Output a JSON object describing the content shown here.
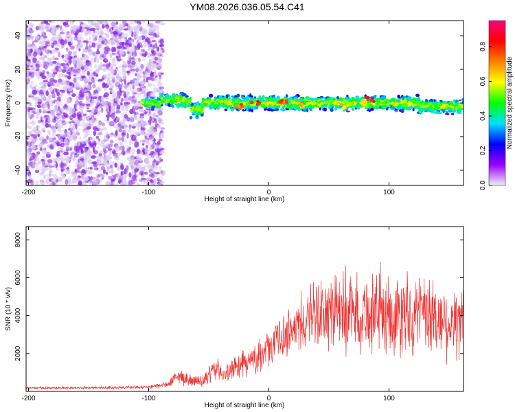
{
  "title": "YM08.2026.036.05.54.C41",
  "chart_data": [
    {
      "type": "heatmap",
      "xlabel": "Height of straight line (km)",
      "ylabel": "Frequency (Hz)",
      "xlim": [
        -202,
        162
      ],
      "ylim": [
        -49,
        49
      ],
      "xticks": [
        -200,
        -100,
        0,
        100
      ],
      "yticks": [
        -40,
        -20,
        0,
        20,
        40
      ],
      "colorbar": {
        "label": "Normalized spectral amplitude",
        "range": [
          0.0,
          0.95
        ],
        "ticks": [
          0.0,
          0.2,
          0.4,
          0.6,
          0.8
        ],
        "tick_labels": [
          "0.0",
          "0.2",
          "0.4",
          "0.6",
          "0.8"
        ],
        "colormap": [
          "#f4eef8",
          "#9a00ff",
          "#0000ff",
          "#00e0ff",
          "#00ff00",
          "#ffff00",
          "#ff8000",
          "#ff0000",
          "#ff0080"
        ]
      },
      "regions": [
        {
          "name": "noise",
          "x_range": [
            -202,
            -88
          ],
          "f_range": [
            -49,
            49
          ],
          "amplitude_range": [
            0.0,
            0.1
          ]
        },
        {
          "name": "signal band",
          "x_range": [
            -105,
            162
          ],
          "f_center": 0,
          "f_halfwidth": 5,
          "amplitude_range": [
            0.1,
            0.95
          ]
        }
      ],
      "peak_points": [
        {
          "x": -12,
          "f": 0,
          "amp": 0.9
        },
        {
          "x": -25,
          "f": -2,
          "amp": 0.8
        },
        {
          "x": 12,
          "f": 1,
          "amp": 0.85
        },
        {
          "x": 25,
          "f": -1,
          "amp": 0.75
        },
        {
          "x": 85,
          "f": 2,
          "amp": 0.9
        },
        {
          "x": 62,
          "f": -2,
          "amp": 0.7
        }
      ]
    },
    {
      "type": "line",
      "xlabel": "Height of straight line (km)",
      "ylabel": "SNR (10 * v/v)",
      "xlim": [
        -202,
        162
      ],
      "ylim": [
        0,
        8700
      ],
      "xticks": [
        -200,
        -100,
        0,
        100
      ],
      "yticks": [
        2000,
        4000,
        6000,
        8000
      ],
      "color": "#ee3333",
      "series_envelope": {
        "x": [
          -202,
          -150,
          -100,
          -85,
          -75,
          -65,
          -55,
          -45,
          -35,
          -25,
          -15,
          -5,
          5,
          15,
          25,
          35,
          50,
          70,
          90,
          110,
          130,
          150,
          162
        ],
        "mean": [
          180,
          190,
          220,
          350,
          800,
          600,
          450,
          1200,
          900,
          1400,
          1600,
          2000,
          2600,
          3100,
          3500,
          3900,
          4100,
          4200,
          4100,
          4000,
          3900,
          3700,
          3500
        ],
        "spread": [
          80,
          90,
          120,
          250,
          500,
          400,
          400,
          700,
          600,
          800,
          900,
          1000,
          1200,
          1400,
          1700,
          2100,
          2400,
          2500,
          2500,
          2500,
          2500,
          2400,
          2300
        ]
      }
    }
  ]
}
